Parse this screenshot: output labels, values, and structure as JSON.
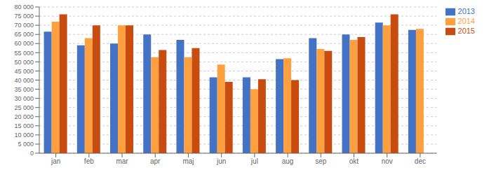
{
  "chart_data": {
    "type": "bar",
    "categories": [
      "jan",
      "feb",
      "mar",
      "apr",
      "maj",
      "jun",
      "jul",
      "aug",
      "sep",
      "okt",
      "nov",
      "dec"
    ],
    "series": [
      {
        "name": "2013",
        "color": "#4472C4",
        "values": [
          66500,
          59000,
          60000,
          65000,
          62000,
          41500,
          41500,
          51500,
          63000,
          65000,
          71500,
          67500
        ]
      },
      {
        "name": "2014",
        "color": "#FFA040",
        "values": [
          72000,
          63000,
          70000,
          52500,
          52500,
          48500,
          35000,
          52000,
          57000,
          62000,
          70000,
          68000
        ]
      },
      {
        "name": "2015",
        "color": "#C84B10",
        "values": [
          76000,
          70000,
          70000,
          56500,
          57500,
          39000,
          40500,
          40000,
          56000,
          63500,
          76000,
          null
        ]
      }
    ],
    "ylim": [
      0,
      80000
    ],
    "yticks": [
      0,
      {
        "value": 5000,
        "label": "5 000"
      },
      {
        "value": 10000,
        "label": "10 000"
      },
      {
        "value": 15000,
        "label": "15 000"
      },
      {
        "value": 20000,
        "label": "20 000"
      },
      {
        "value": 25000,
        "label": "25 000"
      },
      {
        "value": 30000,
        "label": "30 000"
      },
      {
        "value": 35000,
        "label": "35 000"
      },
      {
        "value": 40000,
        "label": "40 000"
      },
      {
        "value": 45000,
        "label": "45 000"
      },
      {
        "value": 50000,
        "label": "50 000"
      },
      {
        "value": 55000,
        "label": "55 000"
      },
      {
        "value": 60000,
        "label": "60 000"
      },
      {
        "value": 65000,
        "label": "65 000"
      },
      {
        "value": 70000,
        "label": "70 000"
      },
      {
        "value": 75000,
        "label": "75 000"
      },
      {
        "value": 80000,
        "label": "80 000"
      }
    ],
    "grid": true,
    "legend": "right"
  }
}
